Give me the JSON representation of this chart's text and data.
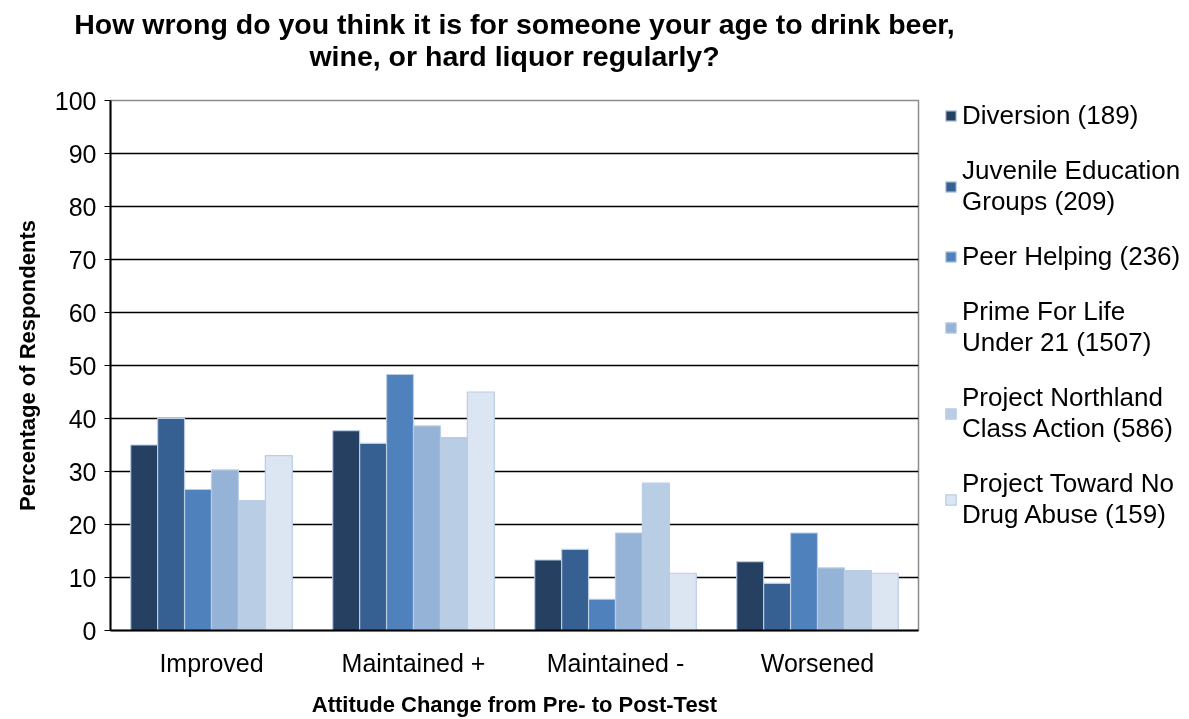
{
  "chart_data": {
    "type": "bar",
    "title": "How wrong do you think it is for someone your age to drink beer, wine, or hard liquor regularly?",
    "xlabel": "Attitude Change from Pre- to Post-Test",
    "ylabel": "Percentage of Respondents",
    "categories": [
      "Improved",
      "Maintained +",
      "Maintained -",
      "Worsened"
    ],
    "series": [
      {
        "name": "Diversion (189)",
        "color": "#254061",
        "values": [
          35.0,
          37.7,
          13.3,
          13.0
        ]
      },
      {
        "name": "Juvenile Education Groups (209)",
        "color": "#366092",
        "values": [
          40.0,
          35.3,
          15.3,
          8.9
        ]
      },
      {
        "name": "Peer Helping (236)",
        "color": "#4f81bd",
        "values": [
          26.6,
          48.3,
          5.9,
          18.4
        ]
      },
      {
        "name": "Prime For Life Under 21 (1507)",
        "color": "#95b3d7",
        "values": [
          30.3,
          38.6,
          18.4,
          11.8
        ]
      },
      {
        "name": "Project Northland Class Action (586)",
        "color": "#b9cde5",
        "values": [
          24.5,
          36.4,
          27.8,
          11.3
        ]
      },
      {
        "name": "Project Toward No Drug Abuse (159)",
        "color": "#dce6f2",
        "values": [
          33.0,
          45.0,
          10.8,
          10.8
        ]
      }
    ],
    "ylim": [
      0,
      100
    ],
    "yticks": [
      0,
      10,
      20,
      30,
      40,
      50,
      60,
      70,
      80,
      90,
      100
    ],
    "grid": "y",
    "legend": "right"
  }
}
